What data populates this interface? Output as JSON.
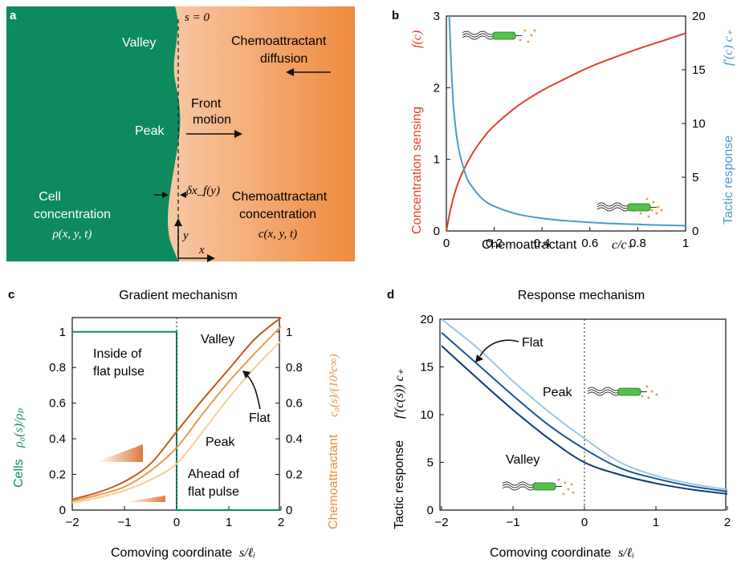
{
  "panels": {
    "a": {
      "letter": "a",
      "s_zero": "s = 0",
      "valley": "Valley",
      "peak": "Peak",
      "front_motion": [
        "Front",
        "motion"
      ],
      "diffusion": [
        "Chemoattractant",
        "diffusion"
      ],
      "cell_conc": [
        "Cell",
        "concentration"
      ],
      "rho": "ρ(x, y, t)",
      "chem_conc": [
        "Chemoattractant",
        "concentration"
      ],
      "c_xyt": "c(x, y, t)",
      "delta_x": "δx_f(y)",
      "y_axis": "y",
      "x_axis": "x",
      "colors": {
        "cells": "#0e8a5f",
        "chem": "#f08a3c"
      }
    },
    "b": {
      "letter": "b",
      "xlabel": "Chemoattractant",
      "xlabel_math": "c/c₊",
      "ylabel_left": "Concentration sensing",
      "ylabel_left_math": "f(c)",
      "ylabel_right": "Tactic response",
      "ylabel_right_math": "f′(c) c₊",
      "xticks": [
        "0",
        "0.2",
        "0.4",
        "0.6",
        "0.8",
        "1"
      ],
      "yticks_left": [
        "0",
        "1",
        "2",
        "3"
      ],
      "yticks_right": [
        "0",
        "5",
        "10",
        "15",
        "20"
      ]
    },
    "c": {
      "letter": "c",
      "title": "Gradient mechanism",
      "xlabel": "Comoving coordinate",
      "xlabel_math": "s/ℓᵢ",
      "ylabel_left": "Cells",
      "ylabel_left_math": "ρ₀(s)/ρₚ",
      "ylabel_right": "Chemoattractant",
      "ylabel_right_math": "c₀(s)/(10³c∞)",
      "xticks": [
        "−2",
        "−1",
        "0",
        "1",
        "2"
      ],
      "yticks_left": [
        "0",
        "0.2",
        "0.4",
        "0.6",
        "0.8",
        "1"
      ],
      "yticks_right": [
        "0",
        "0.2",
        "0.4",
        "0.6",
        "0.8",
        "1"
      ],
      "inside": [
        "Inside of",
        "flat pulse"
      ],
      "ahead": [
        "Ahead of",
        "flat pulse"
      ],
      "valley": "Valley",
      "flat": "Flat",
      "peak": "Peak"
    },
    "d": {
      "letter": "d",
      "title": "Response mechanism",
      "xlabel": "Comoving coordinate",
      "xlabel_math": "s/ℓᵢ",
      "ylabel": "Tactic response",
      "ylabel_math": "f′(c(s)) c₊",
      "xticks": [
        "−2",
        "−1",
        "0",
        "1",
        "2"
      ],
      "yticks": [
        "0",
        "5",
        "10",
        "15",
        "20"
      ],
      "flat": "Flat",
      "peak": "Peak",
      "valley": "Valley"
    }
  },
  "chart_data": [
    {
      "panel": "b",
      "type": "line",
      "xlabel": "Chemoattractant c/c₊",
      "ylabel": "Concentration sensing f(c)",
      "y2label": "Tactic response f′(c) c₊",
      "xlim": [
        0,
        1
      ],
      "ylim": [
        0,
        3
      ],
      "y2lim": [
        0,
        20
      ],
      "series": [
        {
          "name": "Concentration sensing",
          "axis": "left",
          "color": "#e0402a",
          "x": [
            0,
            0.02,
            0.05,
            0.1,
            0.15,
            0.2,
            0.3,
            0.4,
            0.5,
            0.6,
            0.7,
            0.8,
            0.9,
            1.0
          ],
          "y": [
            0,
            0.34,
            0.68,
            1.03,
            1.28,
            1.47,
            1.75,
            1.96,
            2.13,
            2.29,
            2.42,
            2.54,
            2.65,
            2.76
          ]
        },
        {
          "name": "Tactic response",
          "axis": "right",
          "color": "#4d9ac9",
          "x": [
            0.012,
            0.02,
            0.03,
            0.05,
            0.08,
            0.1,
            0.15,
            0.2,
            0.3,
            0.4,
            0.5,
            0.6,
            0.7,
            0.8,
            0.9,
            1.0
          ],
          "y": [
            20,
            15.6,
            11.6,
            7.8,
            5.3,
            4.35,
            3.0,
            2.3,
            1.55,
            1.18,
            0.95,
            0.8,
            0.69,
            0.61,
            0.54,
            0.49
          ]
        }
      ]
    },
    {
      "panel": "c",
      "type": "line",
      "xlabel": "Comoving coordinate s/ℓᵢ",
      "ylabel": "Cells ρ₀(s)/ρₚ",
      "y2label": "Chemoattractant c₀(s)/(10³c∞)",
      "xlim": [
        -2,
        2
      ],
      "ylim": [
        0,
        1.08
      ],
      "y2lim": [
        0,
        1.08
      ],
      "series": [
        {
          "name": "Cells",
          "axis": "left",
          "color": "#0e8a5f",
          "x": [
            -2,
            0,
            0,
            2
          ],
          "y": [
            1,
            1,
            0,
            0
          ]
        },
        {
          "name": "Valley",
          "axis": "right",
          "color": "#c8581a",
          "x": [
            -2,
            -1.5,
            -1,
            -0.5,
            0,
            0.5,
            1,
            1.5,
            2
          ],
          "y": [
            0.06,
            0.1,
            0.16,
            0.26,
            0.44,
            0.62,
            0.79,
            0.96,
            1.11
          ]
        },
        {
          "name": "Flat",
          "axis": "right",
          "color": "#ea9a52",
          "x": [
            -2,
            -1.5,
            -1,
            -0.5,
            0,
            0.5,
            1,
            1.5,
            2
          ],
          "y": [
            0.05,
            0.085,
            0.13,
            0.22,
            0.35,
            0.54,
            0.72,
            0.88,
            1.03
          ]
        },
        {
          "name": "Peak",
          "axis": "right",
          "color": "#f5cd96",
          "x": [
            -2,
            -1.5,
            -1,
            -0.5,
            0,
            0.5,
            1,
            1.5,
            2
          ],
          "y": [
            0.04,
            0.07,
            0.11,
            0.17,
            0.26,
            0.44,
            0.63,
            0.8,
            0.95
          ]
        }
      ]
    },
    {
      "panel": "d",
      "type": "line",
      "xlabel": "Comoving coordinate s/ℓᵢ",
      "ylabel": "Tactic response f′(c(s)) c₊",
      "xlim": [
        -2,
        2
      ],
      "ylim": [
        0,
        20
      ],
      "series": [
        {
          "name": "Flat",
          "color": "#1a5590",
          "x": [
            -2,
            -1.5,
            -1,
            -0.5,
            0,
            0.5,
            1,
            1.5,
            2
          ],
          "y": [
            18.6,
            15.3,
            12.0,
            8.9,
            6.4,
            4.4,
            3.3,
            2.5,
            1.95
          ]
        },
        {
          "name": "Peak",
          "color": "#9cc6e2",
          "x": [
            -2,
            -1.5,
            -1,
            -0.5,
            0,
            0.5,
            1,
            1.5,
            2
          ],
          "y": [
            20.5,
            17.0,
            13.5,
            10.3,
            7.5,
            5.0,
            3.6,
            2.75,
            2.15
          ]
        },
        {
          "name": "Valley",
          "color": "#0e3a78",
          "x": [
            -2,
            -1.5,
            -1,
            -0.5,
            0,
            0.5,
            1,
            1.5,
            2
          ],
          "y": [
            17.2,
            13.8,
            10.5,
            7.5,
            5.0,
            3.7,
            2.8,
            2.15,
            1.7
          ]
        }
      ]
    }
  ]
}
